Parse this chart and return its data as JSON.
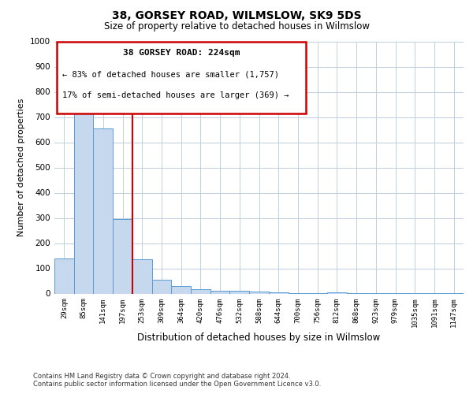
{
  "title": "38, GORSEY ROAD, WILMSLOW, SK9 5DS",
  "subtitle": "Size of property relative to detached houses in Wilmslow",
  "xlabel": "Distribution of detached houses by size in Wilmslow",
  "ylabel": "Number of detached properties",
  "bar_color": "#c5d8ed",
  "bar_edge_color": "#5b9bd5",
  "background_color": "#ffffff",
  "grid_color": "#c0cfe0",
  "annotation_box_color": "#cc0000",
  "annotation_line_color": "#cc0000",
  "annotation_title": "38 GORSEY ROAD: 224sqm",
  "annotation_line1": "← 83% of detached houses are smaller (1,757)",
  "annotation_line2": "17% of semi-detached houses are larger (369) →",
  "ylim": [
    0,
    1000
  ],
  "yticks": [
    0,
    100,
    200,
    300,
    400,
    500,
    600,
    700,
    800,
    900,
    1000
  ],
  "bin_labels": [
    "29sqm",
    "85sqm",
    "141sqm",
    "197sqm",
    "253sqm",
    "309sqm",
    "364sqm",
    "420sqm",
    "476sqm",
    "532sqm",
    "588sqm",
    "644sqm",
    "700sqm",
    "756sqm",
    "812sqm",
    "868sqm",
    "923sqm",
    "979sqm",
    "1035sqm",
    "1091sqm",
    "1147sqm"
  ],
  "bar_heights": [
    140,
    775,
    655,
    295,
    135,
    55,
    30,
    18,
    10,
    10,
    7,
    5,
    3,
    2,
    5,
    2,
    1,
    1,
    1,
    1,
    1
  ],
  "property_line_x": 3.5,
  "footer_line1": "Contains HM Land Registry data © Crown copyright and database right 2024.",
  "footer_line2": "Contains public sector information licensed under the Open Government Licence v3.0."
}
